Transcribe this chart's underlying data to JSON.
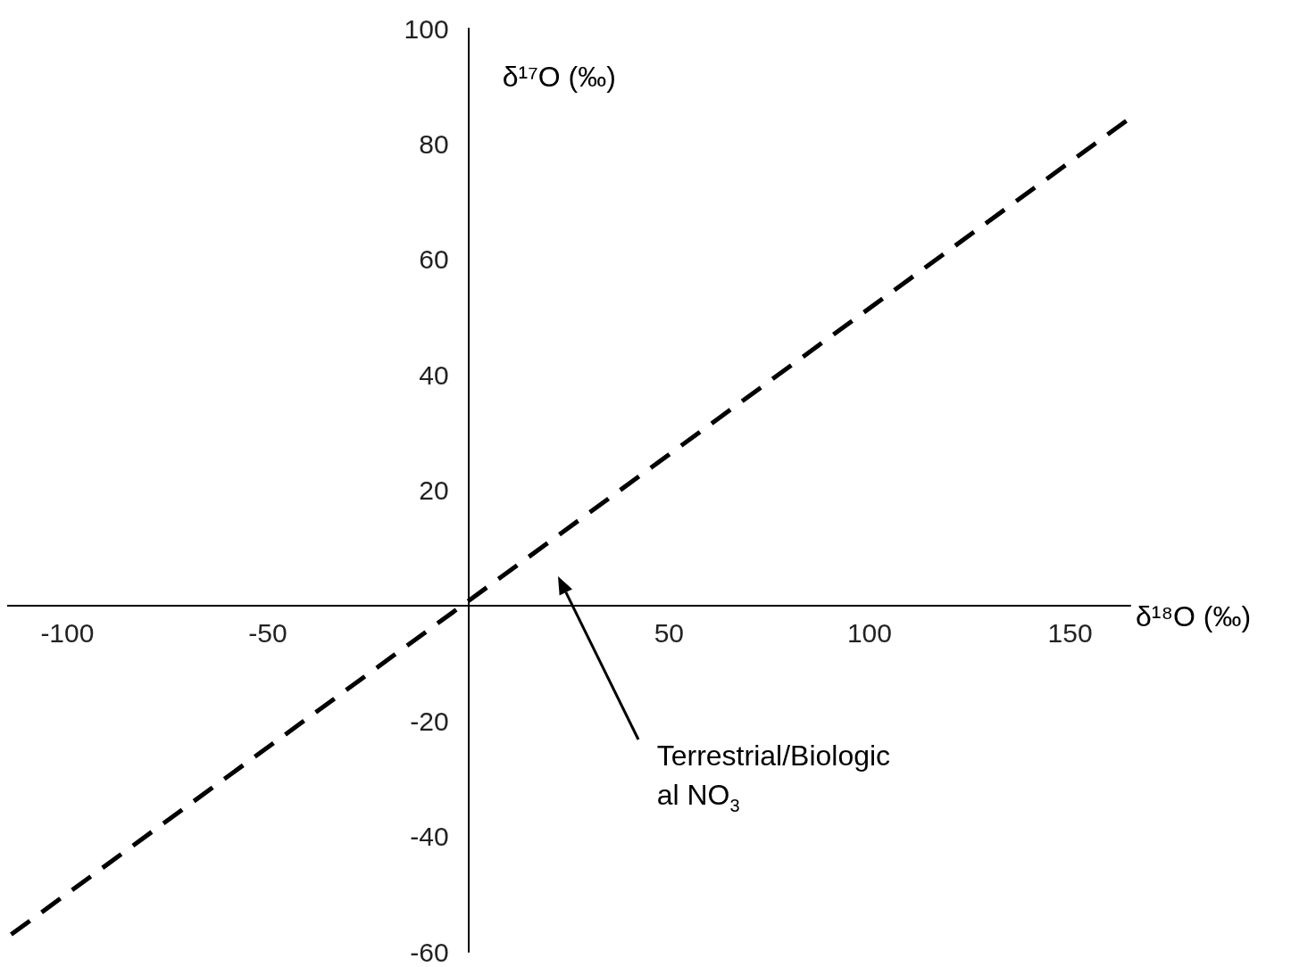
{
  "chart_data": {
    "type": "line",
    "xlabel": "δ¹⁸O (‰)",
    "ylabel": "δ¹⁷O (‰)",
    "x": [
      -114,
      164
    ],
    "series": [
      {
        "color": "#000000",
        "values": [
          -57,
          84
        ]
      }
    ],
    "xlim": [
      -115,
      165
    ],
    "xticks": [
      -100,
      -50,
      50,
      100,
      150
    ],
    "ylim": [
      -60,
      100
    ],
    "yticks": [
      -60,
      -40,
      -20,
      20,
      40,
      60,
      80,
      100
    ],
    "grid": false,
    "marker": "none",
    "line_style": "dashed",
    "annotations": [
      "Terrestrial/Biologic\nal NO$_{3}$"
    ]
  }
}
